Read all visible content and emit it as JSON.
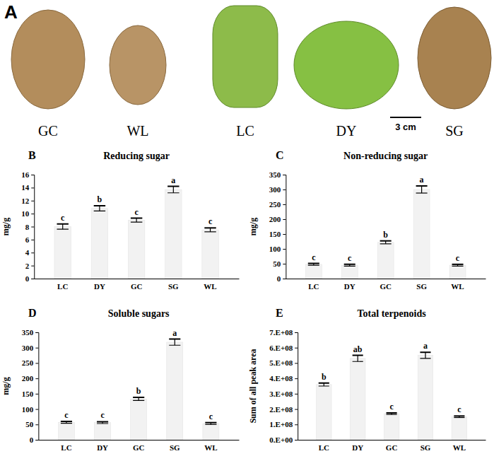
{
  "panel_a": {
    "label": "A",
    "fruits": [
      "GC",
      "WL",
      "LC",
      "DY",
      "SG"
    ],
    "scale_bar": "3 cm"
  },
  "chart_data": [
    {
      "panel": "B",
      "type": "bar",
      "title": "Reducing sugar",
      "y_label": "mg/g",
      "categories": [
        "LC",
        "DY",
        "GC",
        "SG",
        "WL"
      ],
      "values": [
        8.0,
        10.8,
        9.0,
        13.7,
        7.5
      ],
      "errors": [
        0.4,
        0.4,
        0.3,
        0.5,
        0.3
      ],
      "annotations": [
        "c",
        "b",
        "c",
        "a",
        "c"
      ],
      "color": "#f2f2f2",
      "ylim": [
        0,
        16
      ],
      "yticks": [
        0,
        2,
        4,
        6,
        8,
        10,
        12,
        14,
        16
      ]
    },
    {
      "panel": "C",
      "type": "bar",
      "title": "Non-reducing sugar",
      "y_label": "mg/g",
      "categories": [
        "LC",
        "DY",
        "GC",
        "SG",
        "WL"
      ],
      "values": [
        48,
        45,
        122,
        300,
        45
      ],
      "errors": [
        3,
        3,
        5,
        12,
        3
      ],
      "annotations": [
        "c",
        "c",
        "b",
        "a",
        "c"
      ],
      "color": "#f2f2f2",
      "ylim": [
        0,
        350
      ],
      "yticks": [
        0,
        50,
        100,
        150,
        200,
        250,
        300,
        350
      ]
    },
    {
      "panel": "D",
      "type": "bar",
      "title": "Soluble sugars",
      "y_label": "mg/g",
      "categories": [
        "LC",
        "DY",
        "GC",
        "SG",
        "WL"
      ],
      "values": [
        57,
        56,
        133,
        318,
        53
      ],
      "errors": [
        3,
        3,
        5,
        10,
        3
      ],
      "annotations": [
        "c",
        "c",
        "b",
        "a",
        "c"
      ],
      "color": "#f2f2f2",
      "ylim": [
        0,
        350
      ],
      "yticks": [
        0,
        50,
        100,
        150,
        200,
        250,
        300,
        350
      ]
    },
    {
      "panel": "E",
      "type": "bar",
      "title": "Total terpenoids",
      "y_label": "Sum of all peak area",
      "categories": [
        "LC",
        "DY",
        "GC",
        "SG",
        "WL"
      ],
      "values": [
        360000000,
        530000000,
        170000000,
        550000000,
        150000000
      ],
      "errors": [
        10000000,
        20000000,
        5000000,
        20000000,
        5000000
      ],
      "annotations": [
        "b",
        "ab",
        "c",
        "a",
        "c"
      ],
      "color": "#f2f2f2",
      "ylim": [
        0,
        700000000
      ],
      "yticks": [
        {
          "value": 0,
          "label": "0.E+00"
        },
        {
          "value": 100000000,
          "label": "1.E+08"
        },
        {
          "value": 200000000,
          "label": "2.E+08"
        },
        {
          "value": 300000000,
          "label": "3.E+08"
        },
        {
          "value": 400000000,
          "label": "4.E+08"
        },
        {
          "value": 500000000,
          "label": "5.E+08"
        },
        {
          "value": 600000000,
          "label": "6.E+08"
        },
        {
          "value": 700000000,
          "label": "7.E+08"
        }
      ]
    }
  ]
}
